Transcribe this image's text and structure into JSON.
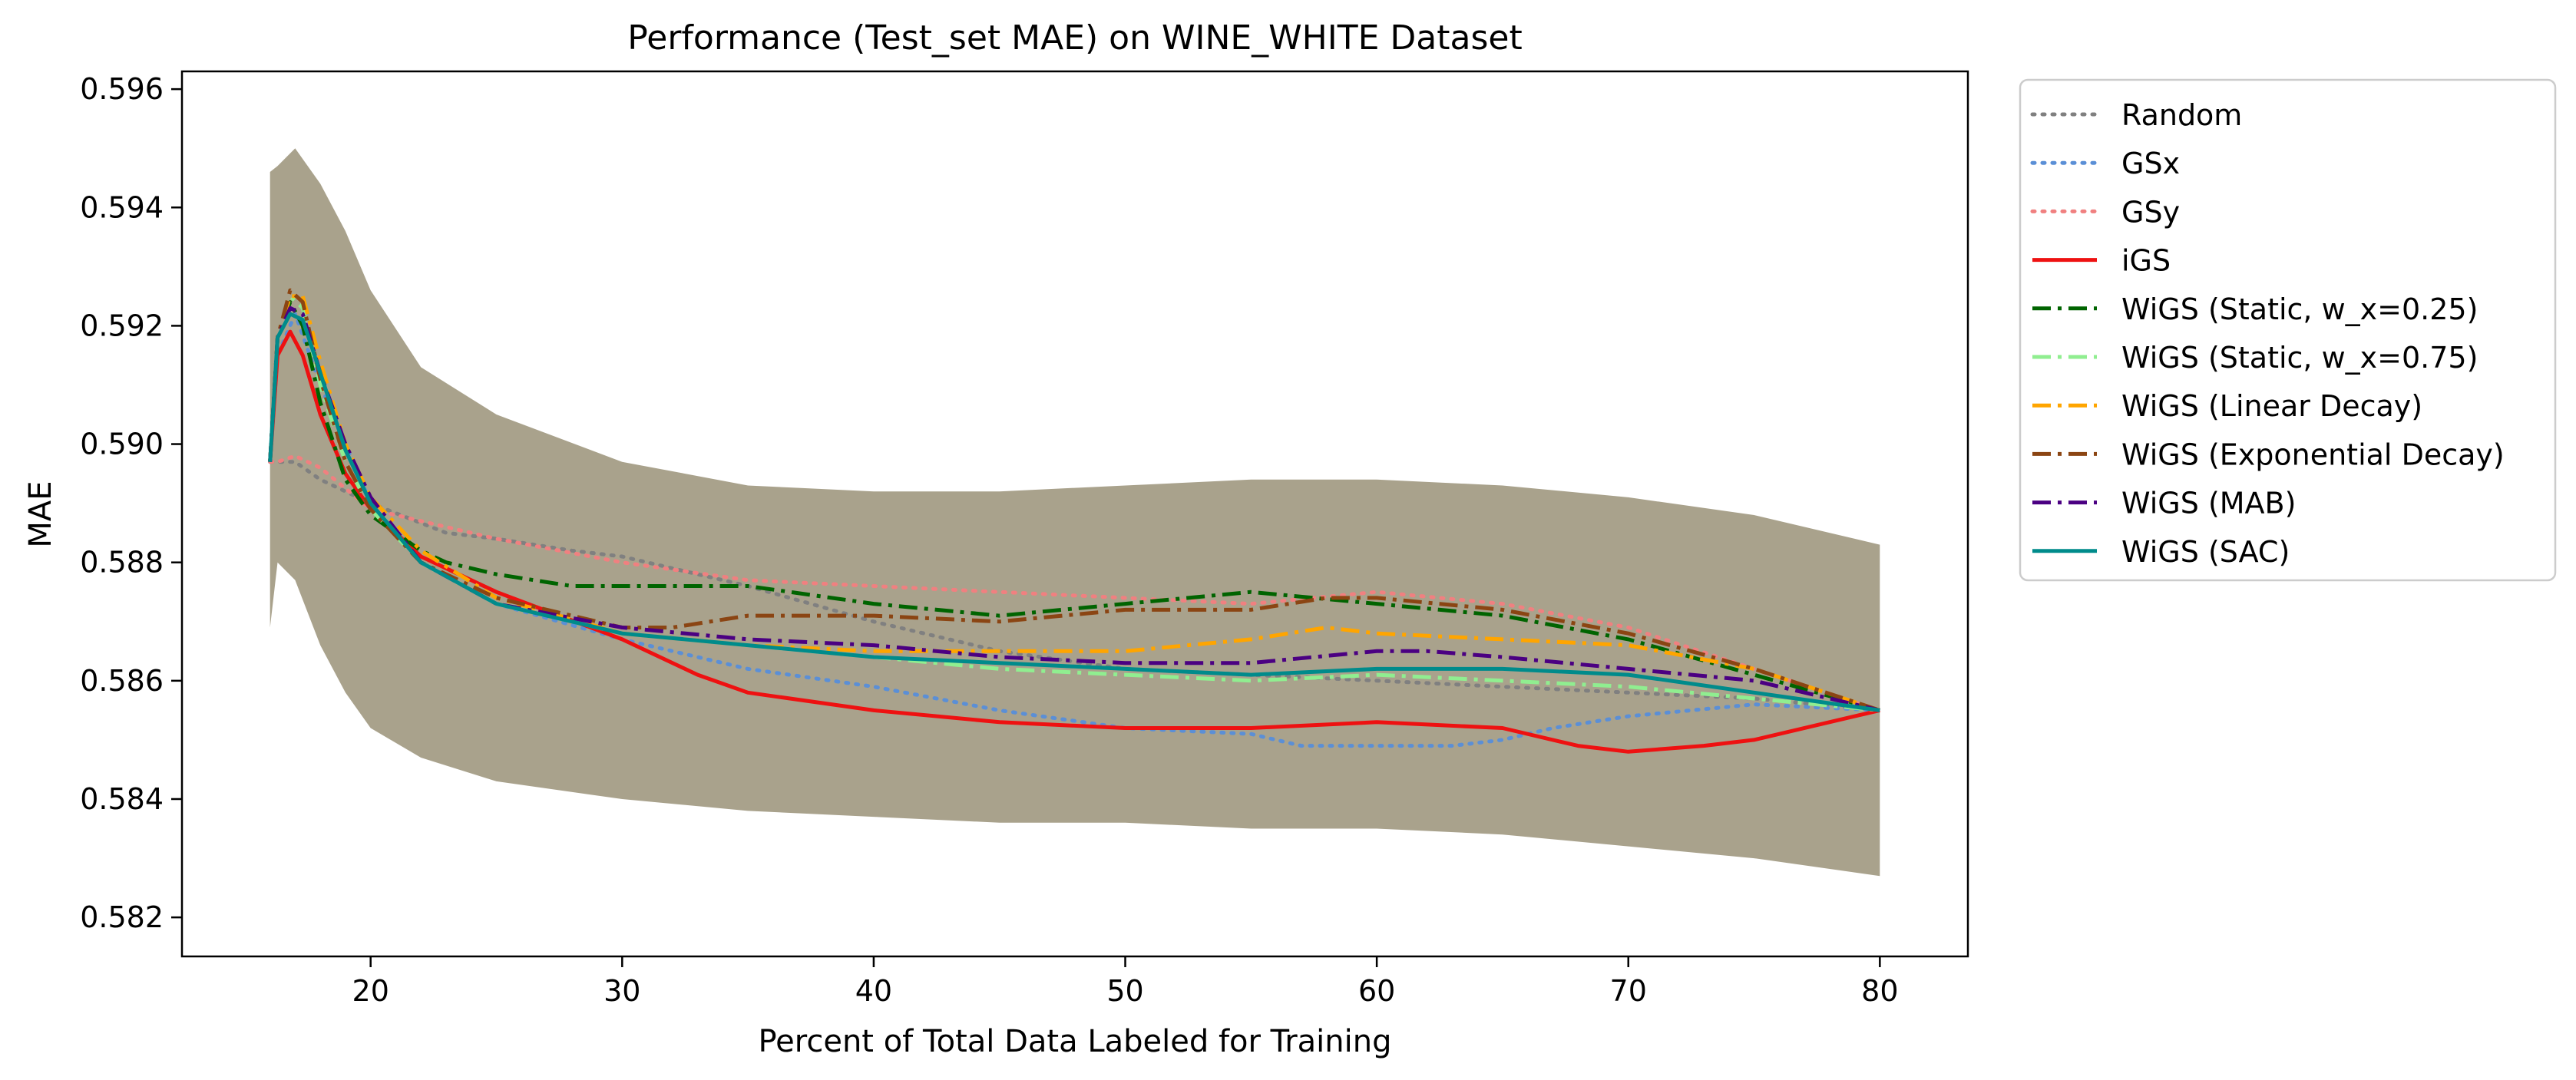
{
  "chart_data": {
    "type": "line",
    "title": "Performance (Test_set MAE) on WINE_WHITE Dataset",
    "xlabel": "Percent of Total Data Labeled for Training",
    "ylabel": "MAE",
    "xlim": [
      12.5,
      83.5
    ],
    "ylim": [
      0.58134,
      0.5963
    ],
    "xticks": [
      20,
      30,
      40,
      50,
      60,
      70,
      80
    ],
    "xtick_labels": [
      "20",
      "30",
      "40",
      "50",
      "60",
      "70",
      "80"
    ],
    "yticks": [
      0.582,
      0.584,
      0.586,
      0.588,
      0.59,
      0.592,
      0.594,
      0.596
    ],
    "ytick_labels": [
      "0.582",
      "0.584",
      "0.586",
      "0.588",
      "0.590",
      "0.592",
      "0.594",
      "0.596"
    ],
    "grid": false,
    "legend_position": "outside-right-top",
    "band": {
      "color": "#9a9278",
      "x": [
        16,
        16.3,
        17,
        18,
        19,
        20,
        22,
        25,
        30,
        35,
        40,
        45,
        50,
        55,
        60,
        65,
        70,
        75,
        80
      ],
      "upper": [
        0.5946,
        0.5947,
        0.595,
        0.5944,
        0.5936,
        0.5926,
        0.5913,
        0.5905,
        0.5897,
        0.5893,
        0.5892,
        0.5892,
        0.5893,
        0.5894,
        0.5894,
        0.5893,
        0.5891,
        0.5888,
        0.5883
      ],
      "lower": [
        0.5869,
        0.588,
        0.5877,
        0.5866,
        0.5858,
        0.5852,
        0.5847,
        0.5843,
        0.584,
        0.5838,
        0.5837,
        0.5836,
        0.5836,
        0.5835,
        0.5835,
        0.5834,
        0.5832,
        0.583,
        0.5827
      ]
    },
    "series": [
      {
        "name": "Random",
        "color": "#808080",
        "dash": "dot",
        "width": 5,
        "x": [
          16,
          16.3,
          17,
          18,
          20,
          23,
          25,
          28,
          30,
          33,
          35,
          40,
          45,
          50,
          55,
          60,
          65,
          70,
          75,
          80
        ],
        "y": [
          0.5897,
          0.5897,
          0.5897,
          0.5894,
          0.589,
          0.5885,
          0.5884,
          0.5882,
          0.5881,
          0.5878,
          0.5876,
          0.587,
          0.5865,
          0.5862,
          0.5861,
          0.586,
          0.5859,
          0.5858,
          0.5857,
          0.5855
        ]
      },
      {
        "name": "GSx",
        "color": "#5b8fd6",
        "dash": "dot",
        "width": 5,
        "x": [
          16,
          16.3,
          17,
          18,
          20,
          22,
          25,
          30,
          35,
          40,
          45,
          50,
          55,
          57,
          60,
          63,
          65,
          67,
          70,
          75,
          80
        ],
        "y": [
          0.5897,
          0.5915,
          0.5922,
          0.591,
          0.589,
          0.588,
          0.5873,
          0.5867,
          0.5862,
          0.5859,
          0.5855,
          0.5852,
          0.5851,
          0.5849,
          0.5849,
          0.5849,
          0.585,
          0.5852,
          0.5854,
          0.5856,
          0.5855
        ]
      },
      {
        "name": "GSy",
        "color": "#f08080",
        "dash": "dot",
        "width": 5,
        "x": [
          16,
          16.3,
          17,
          18,
          20,
          23,
          25,
          30,
          35,
          40,
          45,
          50,
          55,
          60,
          65,
          70,
          75,
          80
        ],
        "y": [
          0.5897,
          0.5897,
          0.5898,
          0.5896,
          0.5889,
          0.5886,
          0.5884,
          0.588,
          0.5877,
          0.5876,
          0.5875,
          0.5874,
          0.5873,
          0.5875,
          0.5873,
          0.5869,
          0.5862,
          0.5855
        ]
      },
      {
        "name": "iGS",
        "color": "#ee1111",
        "dash": "solid",
        "width": 5,
        "x": [
          16,
          16.3,
          16.8,
          17.3,
          18,
          19,
          20,
          22,
          25,
          30,
          33,
          35,
          40,
          45,
          50,
          55,
          60,
          65,
          68,
          70,
          73,
          75,
          80
        ],
        "y": [
          0.5897,
          0.5915,
          0.5919,
          0.5915,
          0.5905,
          0.5895,
          0.5889,
          0.5881,
          0.5875,
          0.5867,
          0.5861,
          0.5858,
          0.5855,
          0.5853,
          0.5852,
          0.5852,
          0.5853,
          0.5852,
          0.5849,
          0.5848,
          0.5849,
          0.585,
          0.5855
        ]
      },
      {
        "name": "WiGS (Static, w_x=0.25)",
        "color": "#006400",
        "dash": "dashdot",
        "width": 5,
        "x": [
          16,
          16.3,
          16.8,
          17.3,
          18,
          19,
          20,
          22,
          23,
          25,
          28,
          30,
          35,
          40,
          45,
          50,
          55,
          60,
          65,
          70,
          75,
          80
        ],
        "y": [
          0.5897,
          0.5918,
          0.5924,
          0.592,
          0.5907,
          0.5894,
          0.5888,
          0.5882,
          0.588,
          0.5878,
          0.5876,
          0.5876,
          0.5876,
          0.5873,
          0.5871,
          0.5873,
          0.5875,
          0.5873,
          0.5871,
          0.5867,
          0.5861,
          0.5855
        ]
      },
      {
        "name": "WiGS (Static, w_x=0.75)",
        "color": "#90ee90",
        "dash": "dashdot",
        "width": 5,
        "x": [
          16,
          16.3,
          16.8,
          17.3,
          18,
          19,
          20,
          22,
          25,
          30,
          35,
          40,
          45,
          50,
          55,
          60,
          65,
          70,
          75,
          80
        ],
        "y": [
          0.5897,
          0.5918,
          0.5925,
          0.5923,
          0.591,
          0.5897,
          0.5889,
          0.588,
          0.5873,
          0.5868,
          0.5866,
          0.5864,
          0.5862,
          0.5861,
          0.586,
          0.5861,
          0.586,
          0.5859,
          0.5857,
          0.5855
        ]
      },
      {
        "name": "WiGS (Linear Decay)",
        "color": "#ffa500",
        "dash": "dashdot",
        "width": 5,
        "x": [
          16,
          16.3,
          16.8,
          17.3,
          18,
          19,
          20,
          22,
          25,
          30,
          35,
          40,
          45,
          50,
          55,
          58,
          60,
          65,
          70,
          75,
          80
        ],
        "y": [
          0.5897,
          0.5918,
          0.5925,
          0.5925,
          0.5914,
          0.59,
          0.5891,
          0.5882,
          0.5874,
          0.5868,
          0.5866,
          0.5865,
          0.5865,
          0.5865,
          0.5867,
          0.5869,
          0.5868,
          0.5867,
          0.5866,
          0.5862,
          0.5855
        ]
      },
      {
        "name": "WiGS (Exponential Decay)",
        "color": "#8b4513",
        "dash": "dashdot",
        "width": 5,
        "x": [
          16,
          16.3,
          16.8,
          17.3,
          18,
          19,
          20,
          22,
          25,
          30,
          32,
          35,
          40,
          45,
          50,
          55,
          58,
          60,
          65,
          70,
          75,
          80
        ],
        "y": [
          0.5897,
          0.5918,
          0.5926,
          0.5924,
          0.5911,
          0.5897,
          0.5889,
          0.588,
          0.5874,
          0.5869,
          0.5869,
          0.5871,
          0.5871,
          0.587,
          0.5872,
          0.5872,
          0.5874,
          0.5874,
          0.5872,
          0.5868,
          0.5862,
          0.5855
        ]
      },
      {
        "name": "WiGS (MAB)",
        "color": "#4b0082",
        "dash": "dashdot",
        "width": 5,
        "x": [
          16,
          16.3,
          16.8,
          17.3,
          18,
          19,
          20,
          22,
          25,
          30,
          35,
          40,
          45,
          50,
          55,
          60,
          62,
          65,
          70,
          75,
          80
        ],
        "y": [
          0.5897,
          0.5918,
          0.5923,
          0.5922,
          0.5912,
          0.59,
          0.5891,
          0.588,
          0.5873,
          0.5869,
          0.5867,
          0.5866,
          0.5864,
          0.5863,
          0.5863,
          0.5865,
          0.5865,
          0.5864,
          0.5862,
          0.586,
          0.5855
        ]
      },
      {
        "name": "WiGS (SAC)",
        "color": "#008b8b",
        "dash": "solid",
        "width": 5,
        "x": [
          16,
          16.3,
          16.8,
          17.3,
          18,
          19,
          20,
          22,
          25,
          30,
          35,
          40,
          45,
          50,
          55,
          60,
          65,
          70,
          75,
          80
        ],
        "y": [
          0.5897,
          0.5918,
          0.5922,
          0.5921,
          0.5912,
          0.5899,
          0.589,
          0.588,
          0.5873,
          0.5868,
          0.5866,
          0.5864,
          0.5863,
          0.5862,
          0.5861,
          0.5862,
          0.5862,
          0.5861,
          0.5858,
          0.5855
        ]
      }
    ]
  }
}
